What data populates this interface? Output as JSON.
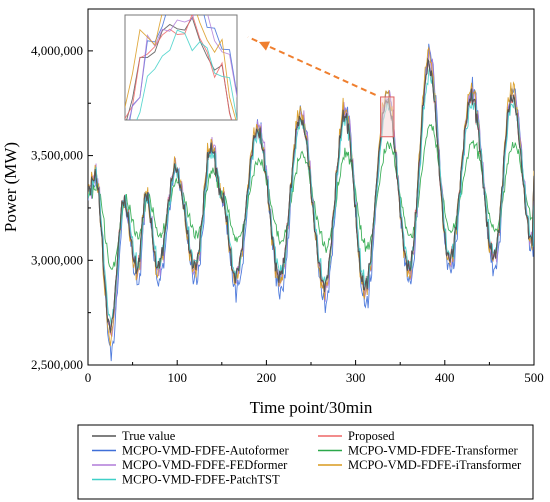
{
  "chart_data": {
    "type": "line",
    "xlabel": "Time point/30min",
    "ylabel": "Power (MW)",
    "xlim": [
      0,
      500
    ],
    "ylim": [
      2500000,
      4200000
    ],
    "x_ticks": [
      0,
      100,
      200,
      300,
      400,
      500
    ],
    "y_ticks": [
      2500000,
      3000000,
      3500000,
      4000000
    ],
    "x_tick_labels": [
      "0",
      "100",
      "200",
      "300",
      "400",
      "500"
    ],
    "y_tick_labels": [
      "2,500,000",
      "3,000,000",
      "3,500,000",
      "4,000,000"
    ],
    "grid": false,
    "legend_position": "below plot, two columns",
    "zoom_inset": {
      "region_x": [
        328,
        343
      ],
      "region_y": [
        3590000,
        3780000
      ],
      "placement": "top-left"
    },
    "series": [
      {
        "name": "True value",
        "color": "#555555"
      },
      {
        "name": "Proposed",
        "color": "#ee6666"
      },
      {
        "name": "MCPO-VMD-FDFE-Autoformer",
        "color": "#3f6fd8"
      },
      {
        "name": "MCPO-VMD-FDFE-Transformer",
        "color": "#2ba84a"
      },
      {
        "name": "MCPO-VMD-FDFE-FEDformer",
        "color": "#b07cd8"
      },
      {
        "name": "MCPO-VMD-FDFE-iTransformer",
        "color": "#d99a1e"
      },
      {
        "name": "MCPO-VMD-FDFE-PatchTST",
        "color": "#3fd0c8"
      }
    ],
    "daily_peaks": [
      {
        "x": 8,
        "y": 3400000
      },
      {
        "x": 40,
        "y": 3280000
      },
      {
        "x": 65,
        "y": 3310000
      },
      {
        "x": 98,
        "y": 3430000
      },
      {
        "x": 138,
        "y": 3540000
      },
      {
        "x": 150,
        "y": 3300000
      },
      {
        "x": 190,
        "y": 3620000
      },
      {
        "x": 238,
        "y": 3680000
      },
      {
        "x": 288,
        "y": 3690000
      },
      {
        "x": 335,
        "y": 3760000
      },
      {
        "x": 382,
        "y": 3930000
      },
      {
        "x": 430,
        "y": 3780000
      },
      {
        "x": 475,
        "y": 3780000
      }
    ],
    "daily_troughs": [
      {
        "x": 25,
        "y": 2670000
      },
      {
        "x": 55,
        "y": 2960000
      },
      {
        "x": 78,
        "y": 2970000
      },
      {
        "x": 120,
        "y": 2970000
      },
      {
        "x": 165,
        "y": 2920000
      },
      {
        "x": 215,
        "y": 2930000
      },
      {
        "x": 265,
        "y": 2880000
      },
      {
        "x": 310,
        "y": 2870000
      },
      {
        "x": 360,
        "y": 2960000
      },
      {
        "x": 405,
        "y": 3000000
      },
      {
        "x": 455,
        "y": 3010000
      },
      {
        "x": 498,
        "y": 3090000
      }
    ]
  }
}
